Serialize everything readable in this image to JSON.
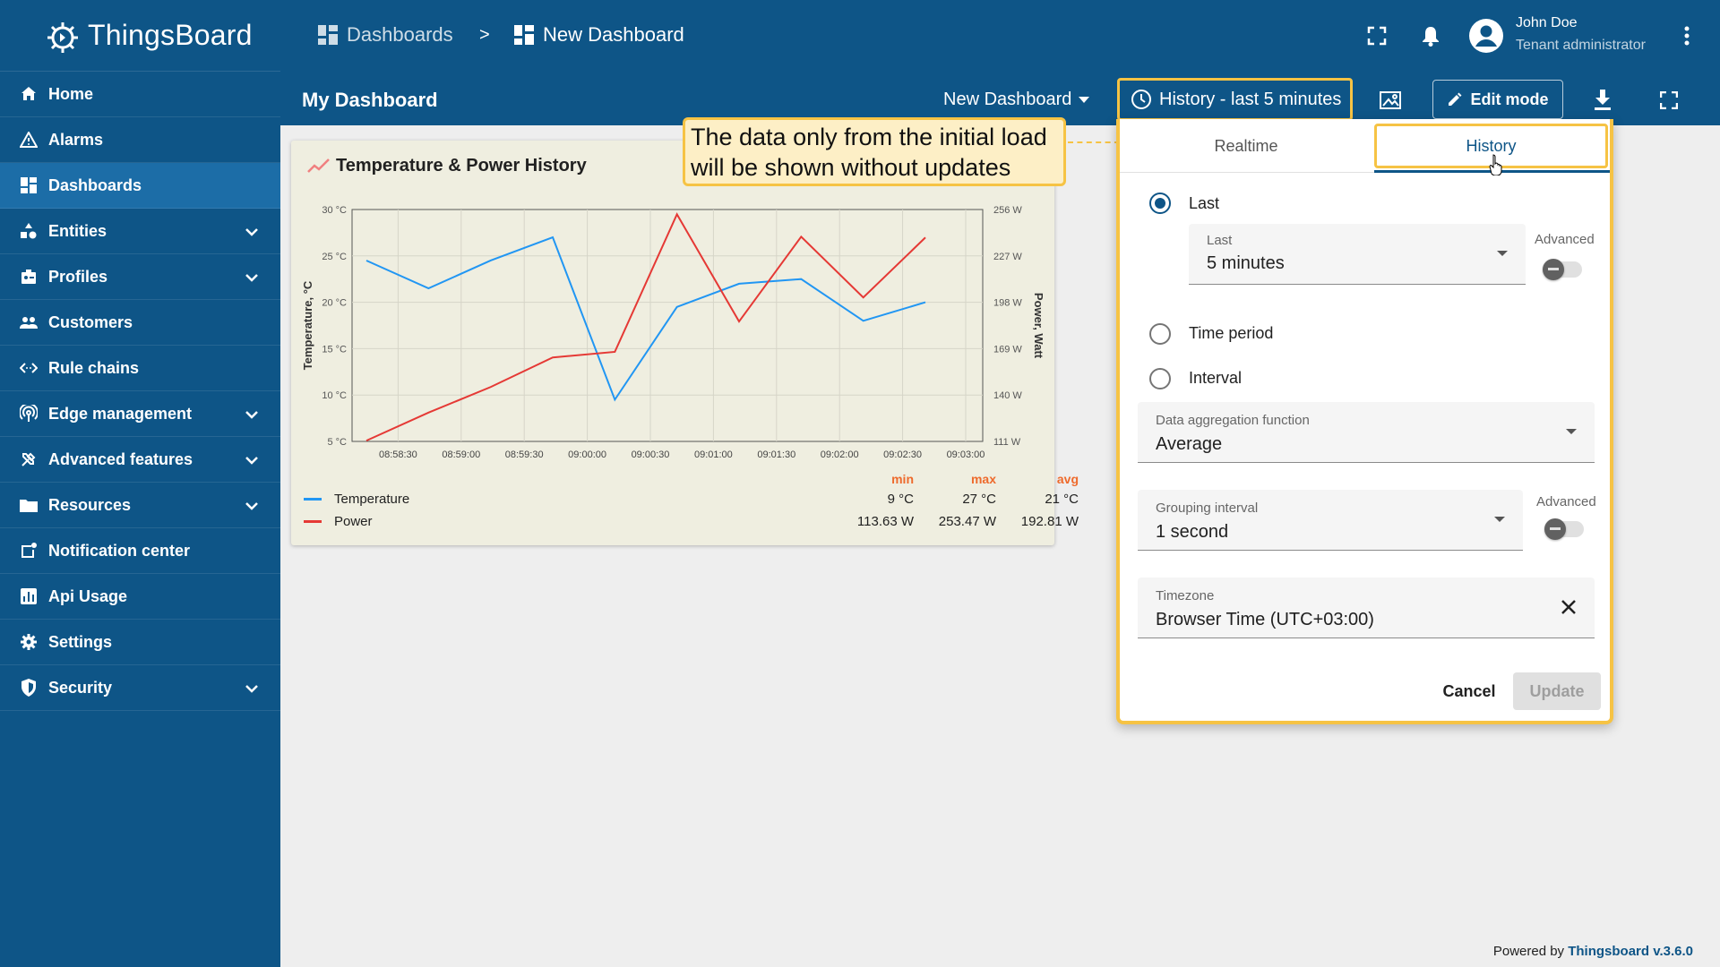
{
  "sidebar": {
    "logo_text": "ThingsBoard",
    "items": [
      {
        "label": "Home",
        "icon": "home-icon",
        "expandable": false
      },
      {
        "label": "Alarms",
        "icon": "alarm-icon",
        "expandable": false
      },
      {
        "label": "Dashboards",
        "icon": "dashboards-icon",
        "expandable": false,
        "active": true
      },
      {
        "label": "Entities",
        "icon": "entities-icon",
        "expandable": true
      },
      {
        "label": "Profiles",
        "icon": "profiles-icon",
        "expandable": true
      },
      {
        "label": "Customers",
        "icon": "customers-icon",
        "expandable": false
      },
      {
        "label": "Rule chains",
        "icon": "rule-chains-icon",
        "expandable": false
      },
      {
        "label": "Edge management",
        "icon": "edge-icon",
        "expandable": true
      },
      {
        "label": "Advanced features",
        "icon": "advanced-icon",
        "expandable": true
      },
      {
        "label": "Resources",
        "icon": "folder-icon",
        "expandable": true
      },
      {
        "label": "Notification center",
        "icon": "notification-center-icon",
        "expandable": false
      },
      {
        "label": "Api Usage",
        "icon": "api-usage-icon",
        "expandable": false
      },
      {
        "label": "Settings",
        "icon": "gear-icon",
        "expandable": false
      },
      {
        "label": "Security",
        "icon": "shield-icon",
        "expandable": true
      }
    ]
  },
  "topbar": {
    "breadcrumb": [
      "Dashboards",
      "New Dashboard"
    ],
    "separator": ">",
    "user_name": "John Doe",
    "user_role": "Tenant administrator"
  },
  "dashbar": {
    "title": "My Dashboard",
    "dashboard_select": "New Dashboard",
    "timewindow_label": "History - last 5 minutes",
    "edit_label": "Edit mode"
  },
  "widget": {
    "title": "Temperature & Power History",
    "stats_headers": [
      "min",
      "max",
      "avg"
    ],
    "legend": [
      {
        "name": "Temperature",
        "color": "#2196f3",
        "min": "9 °C",
        "max": "27 °C",
        "avg": "21 °C"
      },
      {
        "name": "Power",
        "color": "#e53935",
        "min": "113.63 W",
        "max": "253.47 W",
        "avg": "192.81 W"
      }
    ]
  },
  "chart_data": {
    "type": "line",
    "x": [
      "08:58:30",
      "08:59:00",
      "08:59:30",
      "09:00:00",
      "09:00:30",
      "09:01:00",
      "09:01:30",
      "09:02:00",
      "09:02:30",
      "09:03:00"
    ],
    "x_points": [
      "08:58:23",
      "08:58:53",
      "08:59:23",
      "08:59:53",
      "09:00:23",
      "09:00:53",
      "09:01:23",
      "09:01:53",
      "09:02:23",
      "09:02:53"
    ],
    "series": [
      {
        "name": "Temperature",
        "axis": "left",
        "color": "#2196f3",
        "values": [
          24.5,
          21.5,
          24.5,
          27,
          9.5,
          19.5,
          22,
          22.5,
          18,
          20
        ]
      },
      {
        "name": "Power",
        "axis": "right",
        "color": "#e53935",
        "values": [
          111.5,
          129,
          145,
          163.5,
          167,
          253,
          186,
          239,
          201,
          238.5
        ]
      }
    ],
    "ylabel": "Temperature, °C",
    "ylabel_right": "Power, Watt",
    "yticks": [
      "30 °C",
      "25 °C",
      "20 °C",
      "15 °C",
      "10 °C",
      "5 °C"
    ],
    "yticks_right": [
      "256 W",
      "227 W",
      "198 W",
      "169 W",
      "140 W",
      "111 W"
    ],
    "ylim": [
      5,
      30
    ],
    "ylim_right": [
      111,
      256
    ],
    "grid": true
  },
  "callout": {
    "text_line1": "The data only from the initial load",
    "text_line2": "will be shown without updates"
  },
  "panel": {
    "tabs": [
      "Realtime",
      "History"
    ],
    "active_tab": "History",
    "radio_last": "Last",
    "radio_time_period": "Time period",
    "radio_interval": "Interval",
    "last_field": {
      "label": "Last",
      "value": "5 minutes"
    },
    "advanced_label": "Advanced",
    "aggregation": {
      "label": "Data aggregation function",
      "value": "Average"
    },
    "grouping": {
      "label": "Grouping interval",
      "value": "1 second"
    },
    "timezone": {
      "label": "Timezone",
      "value": "Browser Time (UTC+03:00)"
    },
    "cancel_label": "Cancel",
    "update_label": "Update"
  },
  "footer": {
    "powered_prefix": "Powered by",
    "powered_brand": "Thingsboard v.3.6.0"
  },
  "colors": {
    "primary": "#0e5587",
    "highlight": "#f6c344",
    "widget_bg": "#efeee0"
  }
}
